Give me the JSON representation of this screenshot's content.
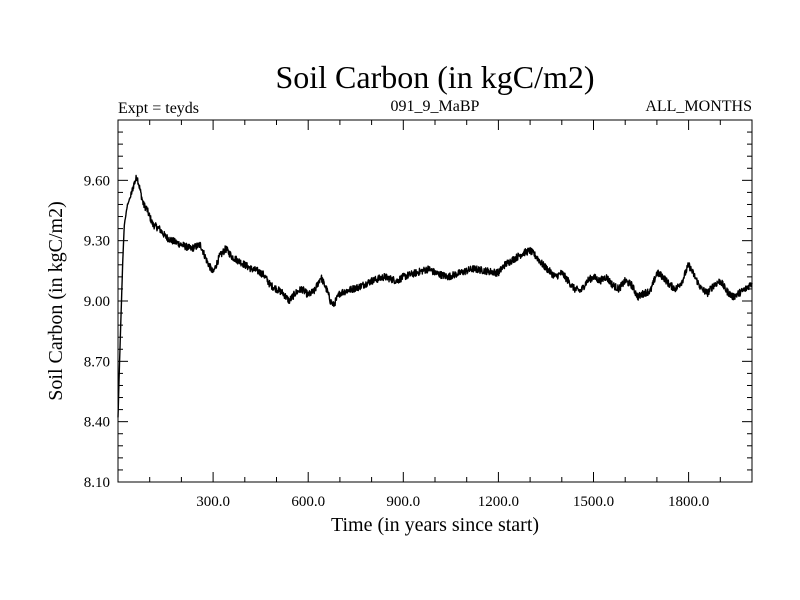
{
  "chart_data": {
    "type": "line",
    "title": "Soil Carbon (in kgC/m2)",
    "subtitle_left": "Expt = teyds",
    "subtitle_center": "091_9_MaBP",
    "subtitle_right": "ALL_MONTHS",
    "xlabel": "Time (in years since start)",
    "ylabel": "Soil Carbon (in kgC/m2)",
    "xlim": [
      0,
      2000
    ],
    "ylim": [
      8.1,
      9.9
    ],
    "x_ticks": [
      300,
      600,
      900,
      1200,
      1500,
      1800
    ],
    "x_tick_labels": [
      "300.0",
      "600.0",
      "900.0",
      "1200.0",
      "1500.0",
      "1800.0"
    ],
    "y_ticks": [
      8.1,
      8.4,
      8.7,
      9.0,
      9.3,
      9.6
    ],
    "y_tick_labels": [
      "8.10",
      "8.40",
      "8.70",
      "9.00",
      "9.30",
      "9.60"
    ],
    "series": [
      {
        "name": "Soil Carbon",
        "color": "#000000",
        "x": [
          0,
          5,
          10,
          15,
          20,
          30,
          40,
          50,
          60,
          70,
          80,
          90,
          100,
          110,
          130,
          150,
          170,
          200,
          230,
          260,
          280,
          300,
          310,
          320,
          340,
          360,
          380,
          400,
          420,
          440,
          460,
          480,
          500,
          520,
          540,
          560,
          580,
          600,
          620,
          640,
          660,
          670,
          680,
          700,
          720,
          740,
          760,
          800,
          840,
          880,
          900,
          940,
          980,
          1000,
          1040,
          1080,
          1120,
          1160,
          1200,
          1220,
          1240,
          1280,
          1300,
          1320,
          1340,
          1380,
          1400,
          1420,
          1440,
          1460,
          1480,
          1500,
          1520,
          1540,
          1560,
          1580,
          1600,
          1620,
          1640,
          1660,
          1680,
          1700,
          1720,
          1740,
          1760,
          1780,
          1800,
          1820,
          1840,
          1860,
          1880,
          1900,
          1920,
          1940,
          1960,
          1980,
          2000
        ],
        "y": [
          8.42,
          8.7,
          8.95,
          9.2,
          9.38,
          9.48,
          9.52,
          9.58,
          9.62,
          9.55,
          9.48,
          9.46,
          9.42,
          9.38,
          9.36,
          9.32,
          9.3,
          9.28,
          9.26,
          9.28,
          9.2,
          9.14,
          9.18,
          9.22,
          9.26,
          9.22,
          9.2,
          9.18,
          9.16,
          9.15,
          9.13,
          9.08,
          9.06,
          9.04,
          9.0,
          9.04,
          9.06,
          9.03,
          9.05,
          9.12,
          9.05,
          9.0,
          8.98,
          9.04,
          9.05,
          9.06,
          9.07,
          9.1,
          9.12,
          9.1,
          9.12,
          9.14,
          9.16,
          9.14,
          9.12,
          9.14,
          9.16,
          9.15,
          9.14,
          9.18,
          9.2,
          9.24,
          9.25,
          9.22,
          9.18,
          9.12,
          9.14,
          9.1,
          9.06,
          9.05,
          9.1,
          9.12,
          9.1,
          9.12,
          9.08,
          9.06,
          9.1,
          9.08,
          9.02,
          9.04,
          9.05,
          9.14,
          9.12,
          9.08,
          9.06,
          9.1,
          9.18,
          9.12,
          9.06,
          9.04,
          9.08,
          9.1,
          9.05,
          9.02,
          9.04,
          9.06,
          9.09
        ]
      }
    ]
  }
}
